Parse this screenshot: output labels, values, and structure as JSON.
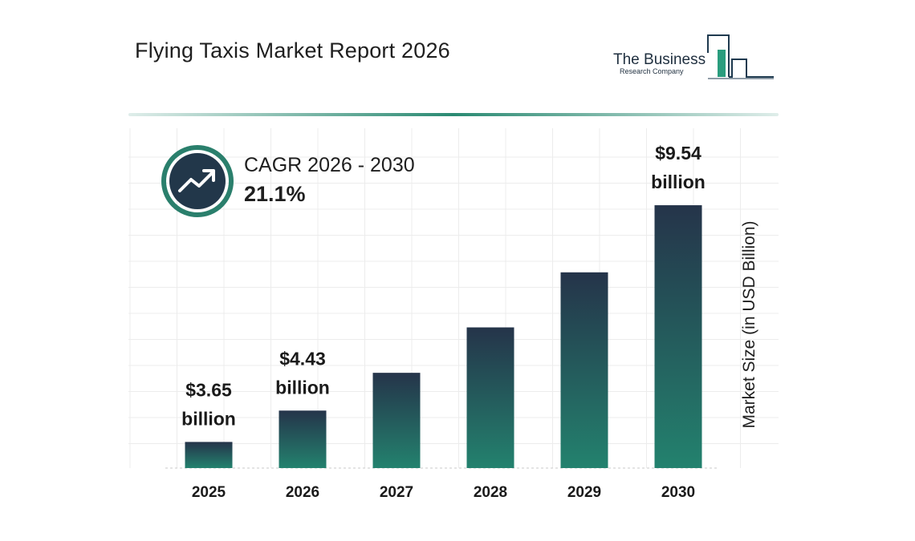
{
  "header": {
    "title": "Flying Taxis Market Report 2026",
    "logo_line1": "The Business",
    "logo_line2": "Research Company"
  },
  "cagr": {
    "icon": "trend-up-icon",
    "label": "CAGR 2026 - 2030",
    "value": "21.1%"
  },
  "colors": {
    "bar_top": "#25344a",
    "bar_bottom": "#23826e",
    "accent": "#2a8a72",
    "badge_ring": "#2a7f6c",
    "badge_fill": "#22374a"
  },
  "chart_data": {
    "type": "bar",
    "title": "Flying Taxis Market Report 2026",
    "categories": [
      "2025",
      "2026",
      "2027",
      "2028",
      "2029",
      "2030"
    ],
    "values": [
      3.65,
      4.43,
      5.37,
      6.5,
      7.87,
      9.54
    ],
    "data_labels": [
      {
        "index": 0,
        "line1": "$3.65",
        "line2": "billion"
      },
      {
        "index": 1,
        "line1": "$4.43",
        "line2": "billion"
      },
      {
        "index": 5,
        "line1": "$9.54",
        "line2": "billion"
      }
    ],
    "xlabel": "",
    "ylabel": "Market Size (in USD Billion)",
    "ylim": [
      3.0,
      9.9
    ],
    "grid": true,
    "legend": "none"
  }
}
